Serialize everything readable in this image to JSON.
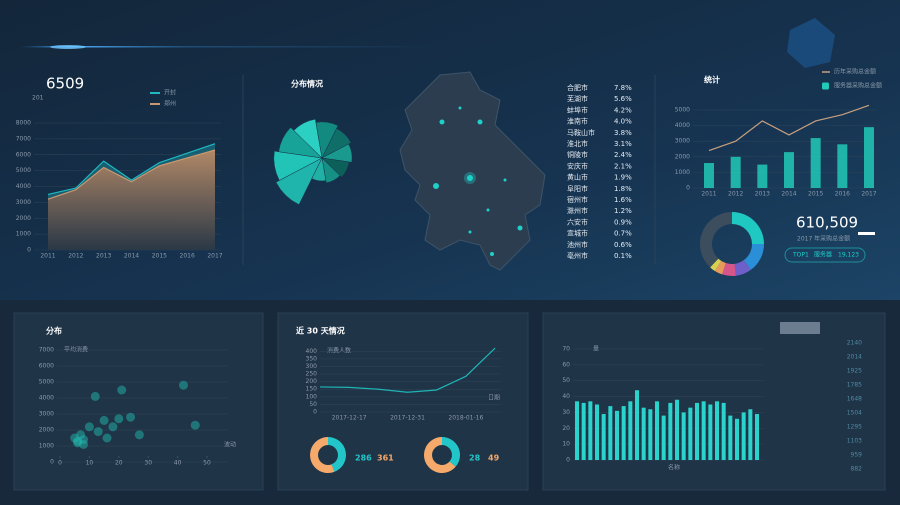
{
  "chart_data": [
    {
      "type": "area",
      "title": "6509",
      "subtitle": "201",
      "categories": [
        "2011",
        "2012",
        "2013",
        "2014",
        "2015",
        "2016",
        "2017"
      ],
      "series": [
        {
          "name": "开封",
          "color": "#1fb8c0",
          "values": [
            3500,
            3900,
            5600,
            4400,
            5500,
            6100,
            6700
          ]
        },
        {
          "name": "郑州",
          "color": "#c89870",
          "values": [
            3200,
            3800,
            5200,
            4300,
            5300,
            5800,
            6300
          ]
        }
      ],
      "ylim": [
        0,
        8000
      ],
      "yticks": [
        0,
        1000,
        2000,
        3000,
        4000,
        5000,
        6000,
        7000,
        8000
      ]
    },
    {
      "type": "rose",
      "title": "分布情况",
      "values": [
        95,
        88,
        80,
        72,
        66,
        60,
        55,
        50,
        46,
        42
      ],
      "colors": [
        "#1fb5ac",
        "#23c4b8",
        "#17a398",
        "#2bd0c2",
        "#138a80",
        "#0f6f68",
        "#1a9a8e",
        "#0d5f59",
        "#168f85",
        "#21b0a4"
      ]
    },
    {
      "type": "bar_line",
      "title": "统计",
      "categories": [
        "2011",
        "2012",
        "2013",
        "2014",
        "2015",
        "2016",
        "2017"
      ],
      "series": [
        {
          "name": "历年采购总金额",
          "type": "line",
          "color": "#c9a07e",
          "values": [
            2400,
            3000,
            4300,
            3400,
            4300,
            4700,
            5300
          ]
        },
        {
          "name": "服务器采购总金额",
          "type": "bar",
          "color": "#22c9b7",
          "values": [
            1600,
            2000,
            1500,
            2300,
            3200,
            2800,
            3900
          ]
        }
      ],
      "ylim": [
        0,
        5500
      ],
      "yticks": [
        0,
        1000,
        2000,
        3000,
        4000,
        5000
      ]
    },
    {
      "type": "donut",
      "values": [
        25,
        15,
        8,
        7,
        4,
        3,
        38
      ],
      "colors": [
        "#1fc8c0",
        "#2a8fd6",
        "#6f5fc9",
        "#d6558a",
        "#e89a5c",
        "#d8d050",
        "#3c4d5e"
      ]
    },
    {
      "type": "scatter",
      "title": "分布",
      "xlabel": "波动",
      "ylabel": "平均消费",
      "color": "#1fb5ac",
      "x": [
        5,
        6,
        7,
        8,
        10,
        12,
        13,
        15,
        16,
        18,
        20,
        21,
        24,
        27,
        42,
        46,
        6,
        8
      ],
      "y": [
        1500,
        1200,
        1700,
        1400,
        2200,
        4100,
        1900,
        2600,
        1500,
        2200,
        2700,
        4500,
        2800,
        1700,
        4800,
        2300,
        1300,
        1100
      ],
      "xlim": [
        0,
        55
      ],
      "xticks": [
        0,
        10,
        20,
        30,
        40,
        50
      ],
      "ylim": [
        0,
        7000
      ],
      "yticks": [
        0,
        1000,
        2000,
        3000,
        4000,
        5000,
        6000,
        7000
      ]
    },
    {
      "type": "line",
      "title": "近 30 天情况",
      "xlabel": "日期",
      "ylabel": "消费人数",
      "color": "#1fb5b5",
      "categories": [
        null,
        "2017-12-17",
        null,
        "2017-12-31",
        null,
        "2018-01-16",
        null
      ],
      "values": [
        165,
        162,
        150,
        130,
        145,
        235,
        420
      ],
      "ylim": [
        0,
        430
      ],
      "yticks": [
        0,
        50,
        100,
        150,
        200,
        250,
        300,
        350,
        400
      ]
    },
    {
      "type": "donut",
      "values": [
        286,
        361
      ],
      "colors": [
        "#23c6c8",
        "#f5a96b"
      ]
    },
    {
      "type": "donut",
      "values": [
        28,
        49
      ],
      "colors": [
        "#23c6c8",
        "#f5a96b"
      ]
    },
    {
      "type": "bar",
      "xlabel": "名称",
      "ylabel": "量",
      "color": "#2ad4cc",
      "values": [
        37,
        36,
        37,
        35,
        29,
        34,
        31,
        34,
        37,
        44,
        33,
        32,
        37,
        28,
        36,
        38,
        30,
        33,
        36,
        37,
        35,
        37,
        36,
        28,
        26,
        30,
        32,
        29
      ],
      "ylim": [
        0,
        70
      ],
      "yticks": [
        0,
        10,
        20,
        30,
        40,
        50,
        60,
        70
      ],
      "y2labels": [
        "2140",
        "2014",
        "1925",
        "1785",
        "1648",
        "1504",
        "1295",
        "1103",
        "959",
        "882"
      ]
    }
  ],
  "city_shares": {
    "rows": [
      [
        "合肥市",
        "7.8%"
      ],
      [
        "芜湖市",
        "5.6%"
      ],
      [
        "蚌埠市",
        "4.2%"
      ],
      [
        "淮南市",
        "4.0%"
      ],
      [
        "马鞍山市",
        "3.8%"
      ],
      [
        "淮北市",
        "3.1%"
      ],
      [
        "铜陵市",
        "2.4%"
      ],
      [
        "安庆市",
        "2.1%"
      ],
      [
        "黄山市",
        "1.9%"
      ],
      [
        "阜阳市",
        "1.8%"
      ],
      [
        "宿州市",
        "1.6%"
      ],
      [
        "滁州市",
        "1.2%"
      ],
      [
        "六安市",
        "0.9%"
      ],
      [
        "宣城市",
        "0.7%"
      ],
      [
        "池州市",
        "0.6%"
      ],
      [
        "亳州市",
        "0.1%"
      ]
    ]
  },
  "summary": {
    "total": "610,509",
    "caption": "2017 年采购总金额",
    "top_label": "TOP1",
    "top_name": "服务器",
    "top_value": "19,123"
  }
}
